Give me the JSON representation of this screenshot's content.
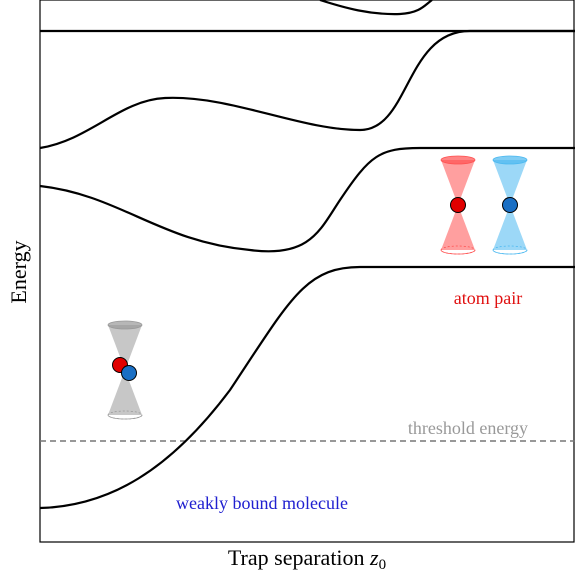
{
  "y_label": "Energy",
  "x_label": {
    "text": "Trap separation",
    "symbol": "z",
    "subscript": "0"
  },
  "annotations": {
    "threshold": "threshold energy",
    "atom_pair": "atom pair",
    "molecule": "weakly bound molecule"
  }
}
